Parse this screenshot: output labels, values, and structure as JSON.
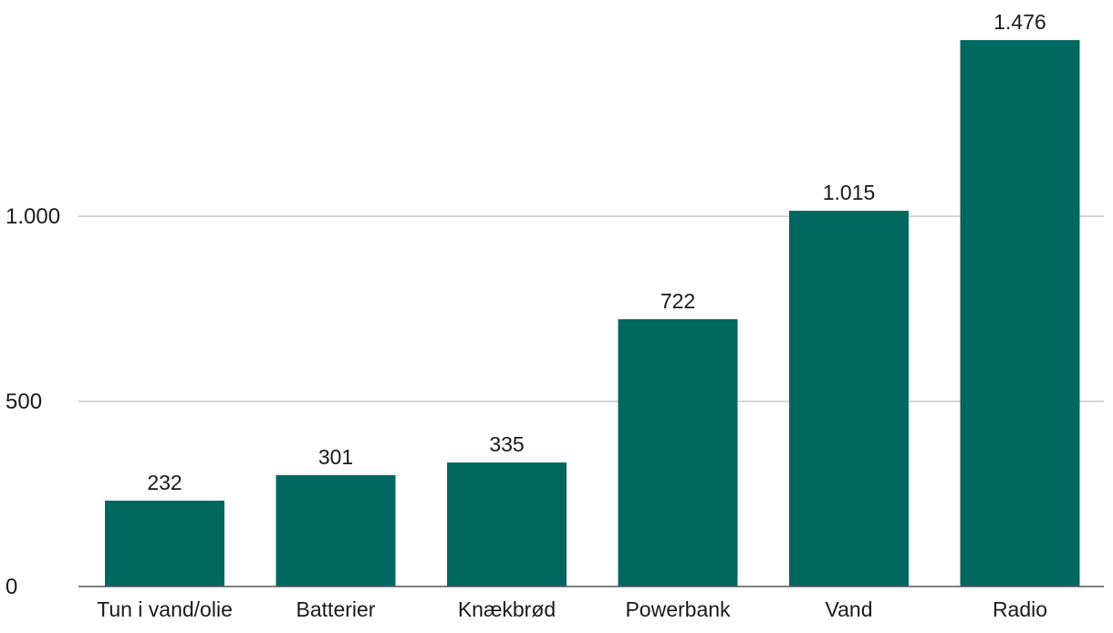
{
  "chart_data": {
    "type": "bar",
    "categories": [
      "Tun i vand/olie",
      "Batterier",
      "Knækbrød",
      "Powerbank",
      "Vand",
      "Radio"
    ],
    "values": [
      232,
      301,
      335,
      722,
      1015,
      1476
    ],
    "value_labels": [
      "232",
      "301",
      "335",
      "722",
      "1.015",
      "1.476"
    ],
    "yticks": [
      0,
      500,
      1000
    ],
    "ytick_labels": [
      "0",
      "500",
      "1.000"
    ],
    "ylim": [
      0,
      1476
    ],
    "grid": true,
    "legend": "none",
    "colors": {
      "bar": "#006860",
      "grid": "#c8c8c8",
      "baseline": "#555555"
    }
  }
}
